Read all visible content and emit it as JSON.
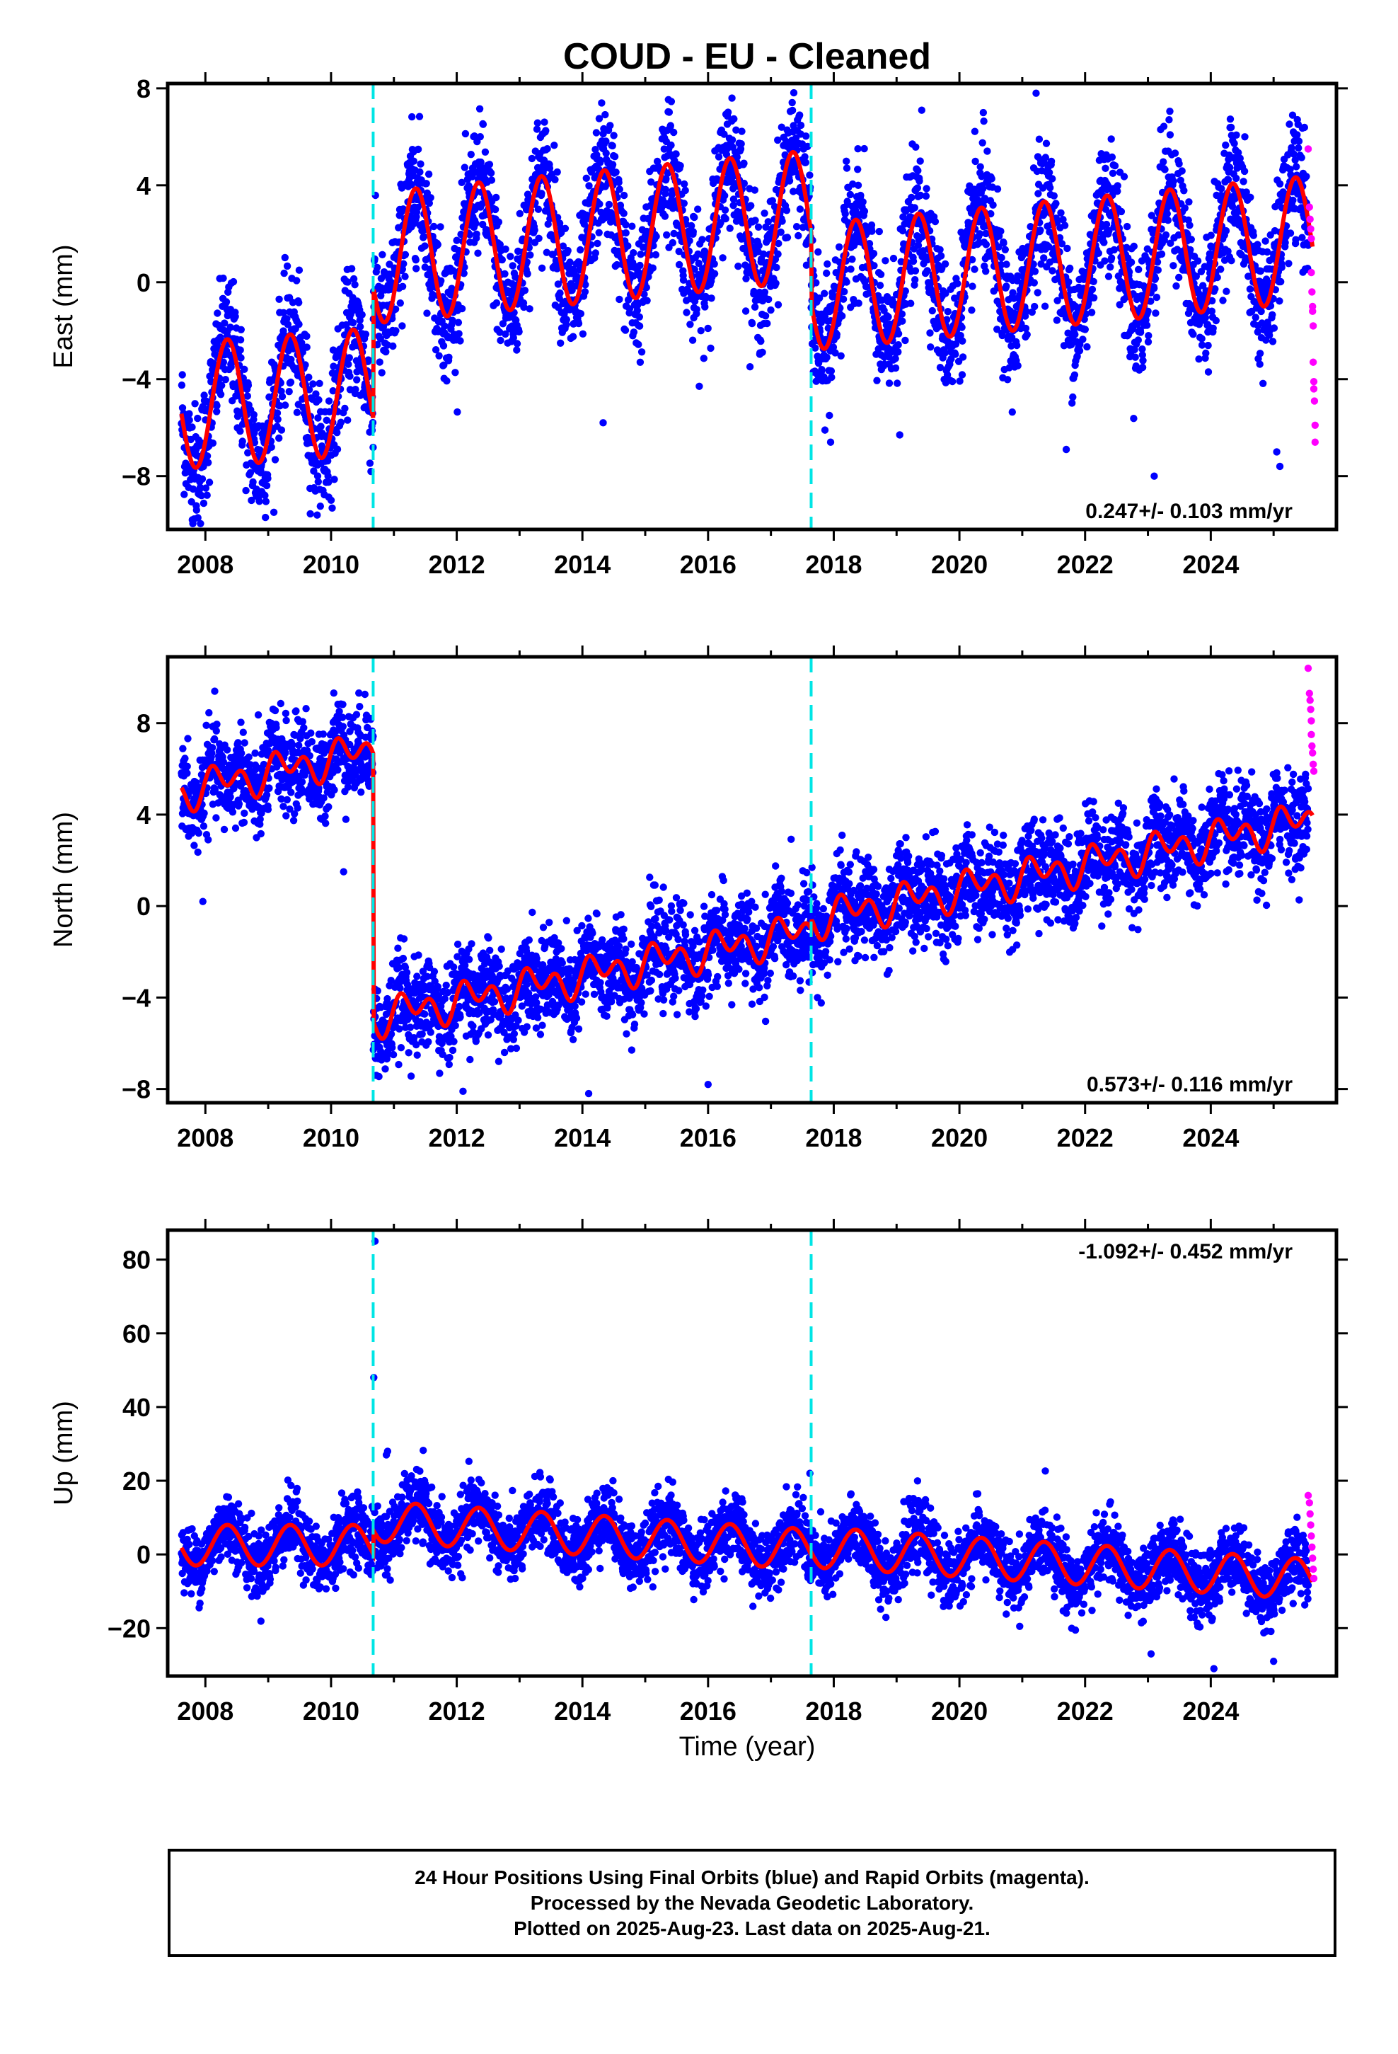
{
  "title": "COUD  - EU - Cleaned",
  "colors": {
    "final_orbits": "#0000ff",
    "rapid_orbits": "#ff00ff",
    "model_fit": "#ff0000",
    "event_lines": "#00e5e5",
    "frame": "#000000"
  },
  "xaxis": {
    "label": "Time (year)",
    "ticks": [
      "2008",
      "2010",
      "2012",
      "2014",
      "2016",
      "2018",
      "2020",
      "2022",
      "2024"
    ]
  },
  "chart_data": [
    {
      "type": "scatter",
      "component": "east",
      "ylabel": "East (mm)",
      "xlim": [
        2007.4,
        2026.0
      ],
      "ylim": [
        -10.2,
        8.2
      ],
      "yticks": [
        8,
        4,
        0,
        -4,
        -8
      ],
      "rate_label": "0.247+/- 0.103 mm/yr",
      "rate_position": "bottom-right",
      "event_lines": [
        2010.67,
        2017.64
      ],
      "model": {
        "offsets": [
          [
            2007.62,
            -5.2
          ],
          [
            2010.67,
            -0.5
          ],
          [
            2017.64,
            -1.4
          ],
          [
            2025.6,
            1.0
          ]
        ],
        "trend_mm_per_yr": 0.247,
        "annual_amplitude": 2.6,
        "annual_phase_peak": 0.35,
        "segment_levels": [
          -5.1,
          1.0,
          -0.2
        ],
        "segment_trends": [
          0.2,
          0.25,
          0.25
        ],
        "segment_amplitudes": [
          2.6,
          2.7,
          2.6
        ]
      },
      "scatter_noise_mm": 1.3,
      "rapid_points": [
        [
          2025.55,
          5.5
        ],
        [
          2025.57,
          3.1
        ],
        [
          2025.58,
          2.6
        ],
        [
          2025.59,
          2.2
        ],
        [
          2025.6,
          1.8
        ],
        [
          2025.6,
          0.4
        ],
        [
          2025.61,
          -0.4
        ],
        [
          2025.62,
          -1.0
        ],
        [
          2025.62,
          -1.2
        ],
        [
          2025.63,
          -1.8
        ],
        [
          2025.63,
          -3.3
        ],
        [
          2025.64,
          -4.1
        ],
        [
          2025.64,
          -4.4
        ],
        [
          2025.65,
          -4.9
        ],
        [
          2025.66,
          -5.9
        ],
        [
          2025.66,
          -6.6
        ]
      ],
      "outliers": [
        [
          2014.33,
          -5.8
        ],
        [
          2017.86,
          -6.1
        ],
        [
          2017.95,
          -6.6
        ],
        [
          2019.05,
          -6.3
        ],
        [
          2021.7,
          -6.9
        ],
        [
          2023.1,
          -8.0
        ],
        [
          2025.05,
          -7.0
        ],
        [
          2025.1,
          -7.6
        ],
        [
          2016.38,
          7.6
        ],
        [
          2021.22,
          7.8
        ],
        [
          2019.4,
          7.1
        ],
        [
          2020.38,
          7.0
        ]
      ]
    },
    {
      "type": "scatter",
      "component": "north",
      "ylabel": "North (mm)",
      "xlim": [
        2007.4,
        2026.0
      ],
      "ylim": [
        -8.6,
        10.9
      ],
      "yticks": [
        8,
        4,
        0,
        -4,
        -8
      ],
      "rate_label": "0.573+/- 0.116 mm/yr",
      "rate_position": "bottom-right",
      "event_lines": [
        2010.67,
        2017.64
      ],
      "model": {
        "segment_levels": [
          5.0,
          -4.9,
          -0.6
        ],
        "segment_trends": [
          0.6,
          0.55,
          0.55
        ],
        "segment_amplitudes": [
          0.8,
          0.8,
          0.8
        ],
        "semiannual": true
      },
      "scatter_noise_mm": 1.0,
      "rapid_points": [
        [
          2025.55,
          10.4
        ],
        [
          2025.57,
          9.3
        ],
        [
          2025.58,
          9.0
        ],
        [
          2025.59,
          8.6
        ],
        [
          2025.6,
          8.1
        ],
        [
          2025.6,
          7.5
        ],
        [
          2025.61,
          7.0
        ],
        [
          2025.62,
          6.7
        ],
        [
          2025.63,
          6.2
        ],
        [
          2025.64,
          5.9
        ]
      ],
      "outliers": [
        [
          2007.96,
          0.2
        ],
        [
          2010.2,
          1.5
        ],
        [
          2016.0,
          -7.8
        ],
        [
          2012.1,
          -8.1
        ],
        [
          2014.1,
          -8.2
        ],
        [
          2023.3,
          1.3
        ],
        [
          2024.8,
          1.2
        ]
      ]
    },
    {
      "type": "scatter",
      "component": "up",
      "ylabel": "Up (mm)",
      "xlim": [
        2007.4,
        2026.0
      ],
      "ylim": [
        -33,
        88
      ],
      "yticks": [
        80,
        60,
        40,
        20,
        0,
        -20
      ],
      "rate_label": "-1.092+/- 0.452 mm/yr",
      "rate_position": "top-right",
      "event_lines": [
        2010.67,
        2017.64
      ],
      "model": {
        "segment_levels": [
          2.5,
          9.0,
          2.0
        ],
        "segment_trends": [
          0.0,
          -1.1,
          -1.1
        ],
        "segment_amplitudes": [
          5.5,
          5.5,
          5.5
        ]
      },
      "scatter_noise_mm": 4.5,
      "rapid_points": [
        [
          2025.55,
          16.0
        ],
        [
          2025.57,
          14.0
        ],
        [
          2025.58,
          11.0
        ],
        [
          2025.59,
          8.0
        ],
        [
          2025.6,
          5.0
        ],
        [
          2025.61,
          2.0
        ],
        [
          2025.62,
          -1.0
        ],
        [
          2025.63,
          -4.0
        ],
        [
          2025.64,
          -6.5
        ]
      ],
      "outliers": [
        [
          2010.7,
          85.0
        ],
        [
          2010.68,
          48.0
        ],
        [
          2010.9,
          28.0
        ],
        [
          2010.88,
          27.0
        ],
        [
          2017.62,
          22.0
        ],
        [
          2023.05,
          -27.0
        ],
        [
          2024.05,
          -31.0
        ],
        [
          2025.0,
          -29.0
        ]
      ]
    }
  ],
  "footer": {
    "line1": "24 Hour Positions Using Final Orbits (blue) and Rapid Orbits (magenta).",
    "line2": "Processed by the Nevada Geodetic Laboratory.",
    "line3": "Plotted on 2025-Aug-23. Last data on 2025-Aug-21."
  }
}
